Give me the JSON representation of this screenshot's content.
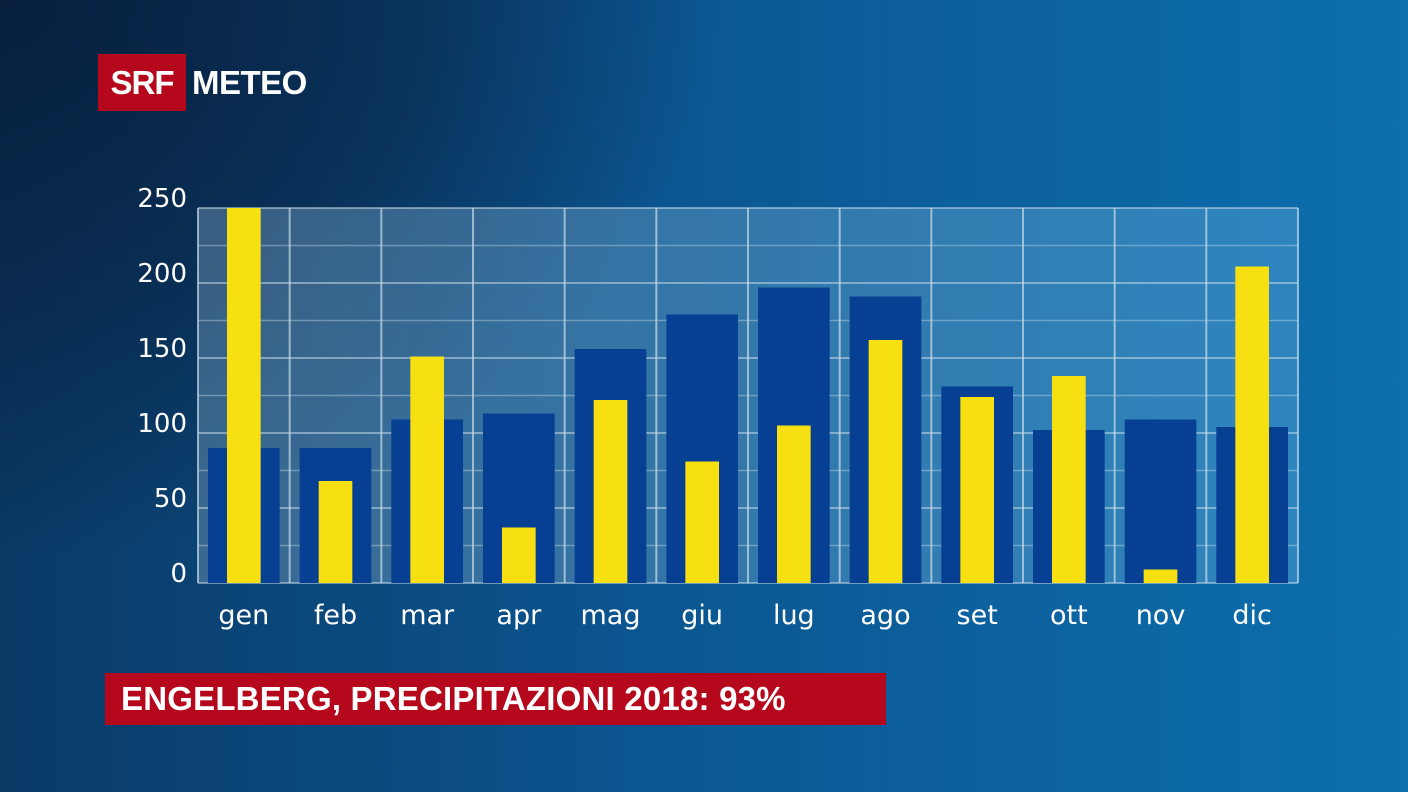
{
  "logo": {
    "brand": "SRF",
    "product": "METEO"
  },
  "caption": "ENGELBERG, PRECIPITAZIONI 2018: 93%",
  "colors": {
    "bar_norm": "#073f92",
    "bar_actual": "#f7e012",
    "caption_bg": "#b5081c"
  },
  "chart_data": {
    "type": "bar",
    "categories": [
      "gen",
      "feb",
      "mar",
      "apr",
      "mag",
      "giu",
      "lug",
      "ago",
      "set",
      "ott",
      "nov",
      "dic"
    ],
    "series": [
      {
        "values": [
          90,
          90,
          109,
          113,
          156,
          179,
          197,
          191,
          131,
          102,
          109,
          104
        ]
      },
      {
        "values": [
          250,
          68,
          151,
          37,
          122,
          81,
          105,
          162,
          124,
          138,
          9,
          211
        ]
      }
    ],
    "yticks": [
      0,
      50,
      100,
      150,
      200,
      250
    ],
    "ylim": [
      0,
      250
    ],
    "grid": true
  }
}
